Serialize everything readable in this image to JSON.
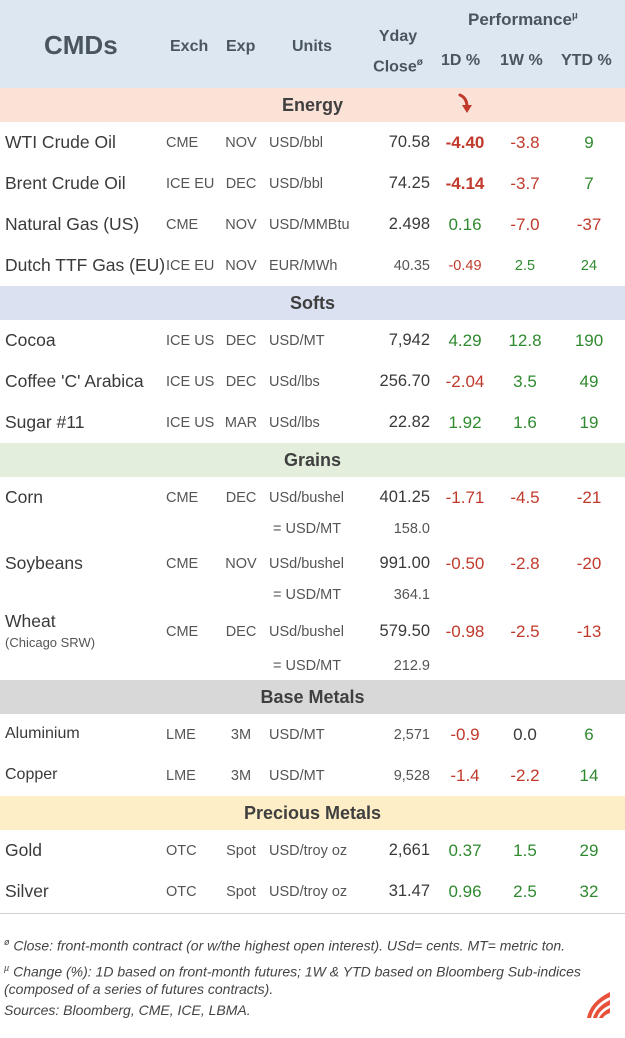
{
  "header": {
    "title": "CMDs",
    "col_exch": "Exch",
    "col_exp": "Exp",
    "col_units": "Units",
    "col_yday_1": "Yday",
    "col_yday_2": "Close",
    "col_yday_mark": "ø",
    "col_perf": "Performance",
    "col_perf_mark": "µ",
    "col_1d": "1D %",
    "col_1w": "1W %",
    "col_ytd": "YTD %"
  },
  "sections": {
    "energy": "Energy",
    "softs": "Softs",
    "grains": "Grains",
    "base": "Base Metals",
    "precious": "Precious Metals"
  },
  "rows": {
    "wti": {
      "name": "WTI Crude Oil",
      "exch": "CME",
      "exp": "NOV",
      "units": "USD/bbl",
      "close": "70.58",
      "d1": "-4.40",
      "w1": "-3.8",
      "ytd": "9"
    },
    "brent": {
      "name": "Brent Crude Oil",
      "exch": "ICE EU",
      "exp": "DEC",
      "units": "USD/bbl",
      "close": "74.25",
      "d1": "-4.14",
      "w1": "-3.7",
      "ytd": "7"
    },
    "natgas": {
      "name": "Natural Gas (US)",
      "exch": "CME",
      "exp": "NOV",
      "units": "USD/MMBtu",
      "close": "2.498",
      "d1": "0.16",
      "w1": "-7.0",
      "ytd": "-37"
    },
    "ttf": {
      "name": "Dutch TTF Gas (EU)",
      "exch": "ICE EU",
      "exp": "NOV",
      "units": "EUR/MWh",
      "close": "40.35",
      "d1": "-0.49",
      "w1": "2.5",
      "ytd": "24"
    },
    "cocoa": {
      "name": "Cocoa",
      "exch": "ICE US",
      "exp": "DEC",
      "units": "USD/MT",
      "close": "7,942",
      "d1": "4.29",
      "w1": "12.8",
      "ytd": "190"
    },
    "coffee": {
      "name": "Coffee 'C' Arabica",
      "exch": "ICE US",
      "exp": "DEC",
      "units": "USd/lbs",
      "close": "256.70",
      "d1": "-2.04",
      "w1": "3.5",
      "ytd": "49"
    },
    "sugar": {
      "name": "Sugar #11",
      "exch": "ICE US",
      "exp": "MAR",
      "units": "USd/lbs",
      "close": "22.82",
      "d1": "1.92",
      "w1": "1.6",
      "ytd": "19"
    },
    "corn": {
      "name": "Corn",
      "exch": "CME",
      "exp": "DEC",
      "units": "USd/bushel",
      "close": "401.25",
      "d1": "-1.71",
      "w1": "-4.5",
      "ytd": "-21",
      "conv_units": "= USD/MT",
      "conv_close": "158.0"
    },
    "soy": {
      "name": "Soybeans",
      "exch": "CME",
      "exp": "NOV",
      "units": "USd/bushel",
      "close": "991.00",
      "d1": "-0.50",
      "w1": "-2.8",
      "ytd": "-20",
      "conv_units": "= USD/MT",
      "conv_close": "364.1"
    },
    "wheat": {
      "name": "Wheat",
      "sub": "(Chicago SRW)",
      "exch": "CME",
      "exp": "DEC",
      "units": "USd/bushel",
      "close": "579.50",
      "d1": "-0.98",
      "w1": "-2.5",
      "ytd": "-13",
      "conv_units": "= USD/MT",
      "conv_close": "212.9"
    },
    "alu": {
      "name": "Aluminium",
      "exch": "LME",
      "exp": "3M",
      "units": "USD/MT",
      "close": "2,571",
      "d1": "-0.9",
      "w1": "0.0",
      "ytd": "6"
    },
    "copper": {
      "name": "Copper",
      "exch": "LME",
      "exp": "3M",
      "units": "USD/MT",
      "close": "9,528",
      "d1": "-1.4",
      "w1": "-2.2",
      "ytd": "14"
    },
    "gold": {
      "name": "Gold",
      "exch": "OTC",
      "exp": "Spot",
      "units": "USD/troy oz",
      "close": "2,661",
      "d1": "0.37",
      "w1": "1.5",
      "ytd": "29"
    },
    "silver": {
      "name": "Silver",
      "exch": "OTC",
      "exp": "Spot",
      "units": "USD/troy oz",
      "close": "31.47",
      "d1": "0.96",
      "w1": "2.5",
      "ytd": "32"
    }
  },
  "footer": {
    "mark1": "ø",
    "note1": " Close: front-month contract (or w/the highest open interest). USd= cents. MT= metric ton.",
    "mark2": "µ",
    "note2a": " Change (%): 1D based on front-month futures; 1W & YTD based on Bloomberg Sub-indices",
    "note2b": "(composed of a series of futures contracts).",
    "sources": "Sources: Bloomberg, CME, ICE, LBMA."
  },
  "colors": {
    "positive": "#2f8a2f",
    "negative": "#c0392b",
    "arrow": "#c0392b",
    "logo": "#e8503a"
  },
  "icons": {
    "highlight": "arrow-down-icon",
    "logo": "brand-logo-icon"
  }
}
